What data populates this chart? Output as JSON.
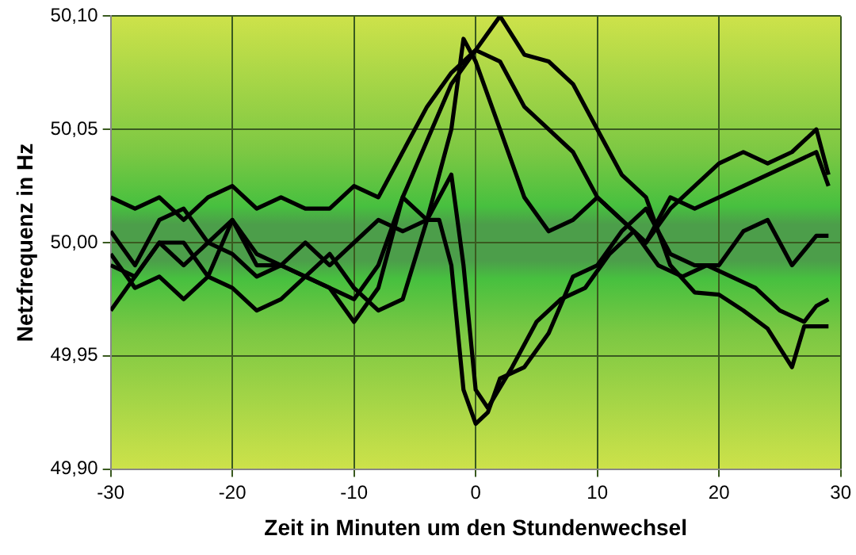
{
  "chart_data": {
    "type": "line",
    "xlabel": "Zeit in Minuten um den Stundenwechsel",
    "ylabel": "Netzfrequenz in Hz",
    "xlim": [
      -30,
      30
    ],
    "xticks": [
      -30,
      -20,
      -10,
      0,
      10,
      20,
      30
    ],
    "ylim": [
      49.9,
      50.1
    ],
    "yticks": [
      {
        "value": 49.9,
        "label": "49,90"
      },
      {
        "value": 49.95,
        "label": "49,95"
      },
      {
        "value": 50,
        "label": "50,00"
      },
      {
        "value": 50.05,
        "label": "50,05"
      },
      {
        "value": 50.1,
        "label": "50,10"
      }
    ],
    "grid": true,
    "legend": false,
    "marker": "none",
    "line_style": "solid",
    "series": [
      {
        "color": "#000000",
        "x": [
          -30,
          -28,
          -26,
          -24,
          -22,
          -20,
          -18,
          -16,
          -14,
          -12,
          -10,
          -8,
          -6,
          -4,
          -2,
          0,
          2,
          4,
          6,
          8,
          10,
          12,
          14,
          16,
          18,
          20,
          22,
          24,
          26,
          27,
          29
        ],
        "values": [
          49.99,
          49.985,
          50.0,
          49.99,
          50.0,
          50.01,
          49.99,
          49.99,
          49.985,
          49.98,
          49.975,
          49.99,
          50.02,
          50.045,
          50.07,
          50.085,
          50.1,
          50.083,
          50.08,
          50.07,
          50.05,
          50.03,
          50.02,
          49.99,
          49.978,
          49.977,
          49.97,
          49.962,
          49.945,
          49.963,
          49.963
        ]
      },
      {
        "color": "#000000",
        "x": [
          -30,
          -28,
          -26,
          -24,
          -22,
          -20,
          -18,
          -16,
          -14,
          -12,
          -10,
          -8,
          -6,
          -4,
          -2,
          0,
          2,
          4,
          6,
          8,
          10,
          12,
          14,
          16,
          18,
          20,
          22,
          24,
          26,
          28,
          29
        ],
        "values": [
          50.02,
          50.015,
          50.02,
          50.01,
          50.02,
          50.025,
          50.015,
          50.02,
          50.015,
          50.015,
          50.025,
          50.02,
          50.04,
          50.06,
          50.075,
          50.085,
          50.08,
          50.06,
          50.05,
          50.04,
          50.02,
          50.01,
          50.0,
          50.015,
          50.025,
          50.035,
          50.04,
          50.035,
          50.04,
          50.05,
          50.03
        ]
      },
      {
        "color": "#000000",
        "x": [
          -30,
          -28,
          -26,
          -24,
          -22,
          -20,
          -18,
          -16,
          -14,
          -12,
          -10,
          -8,
          -6,
          -4,
          -2,
          -1,
          0,
          2,
          4,
          6,
          8,
          10,
          12,
          14,
          16,
          18,
          20,
          22,
          24,
          26,
          28,
          29
        ],
        "values": [
          50.005,
          49.99,
          50.01,
          50.015,
          50.0,
          49.995,
          49.985,
          49.99,
          49.985,
          49.995,
          49.98,
          49.97,
          49.975,
          50.01,
          50.05,
          50.09,
          50.08,
          50.05,
          50.02,
          50.005,
          50.01,
          50.02,
          50.01,
          50.0,
          50.02,
          50.015,
          50.02,
          50.025,
          50.03,
          50.035,
          50.04,
          50.025
        ]
      },
      {
        "color": "#000000",
        "x": [
          -30,
          -28,
          -26,
          -24,
          -22,
          -20,
          -18,
          -16,
          -14,
          -12,
          -10,
          -8,
          -6,
          -4,
          -3,
          -2,
          -1,
          0,
          1,
          2,
          4,
          6,
          8,
          10,
          12,
          14,
          16,
          18,
          20,
          22,
          24,
          26,
          28,
          29
        ],
        "values": [
          49.97,
          49.985,
          50.0,
          50.0,
          49.985,
          50.01,
          49.995,
          49.99,
          50.0,
          49.99,
          50.0,
          50.01,
          50.005,
          50.01,
          50.01,
          49.99,
          49.935,
          49.92,
          49.925,
          49.94,
          49.945,
          49.96,
          49.985,
          49.99,
          50.005,
          50.015,
          49.995,
          49.99,
          49.99,
          50.005,
          50.01,
          49.99,
          50.003,
          50.003
        ]
      },
      {
        "color": "#000000",
        "x": [
          -30,
          -28,
          -26,
          -24,
          -22,
          -20,
          -18,
          -16,
          -14,
          -12,
          -10,
          -8,
          -6,
          -4,
          -2,
          -1,
          0,
          1,
          3,
          5,
          7,
          9,
          11,
          13,
          15,
          17,
          19,
          21,
          23,
          25,
          27,
          28,
          29
        ],
        "values": [
          49.995,
          49.98,
          49.985,
          49.975,
          49.985,
          49.98,
          49.97,
          49.975,
          49.985,
          49.98,
          49.965,
          49.98,
          50.02,
          50.01,
          50.03,
          49.99,
          49.935,
          49.927,
          49.945,
          49.965,
          49.975,
          49.98,
          49.995,
          50.005,
          49.99,
          49.985,
          49.99,
          49.985,
          49.98,
          49.97,
          49.965,
          49.972,
          49.975
        ]
      }
    ]
  }
}
